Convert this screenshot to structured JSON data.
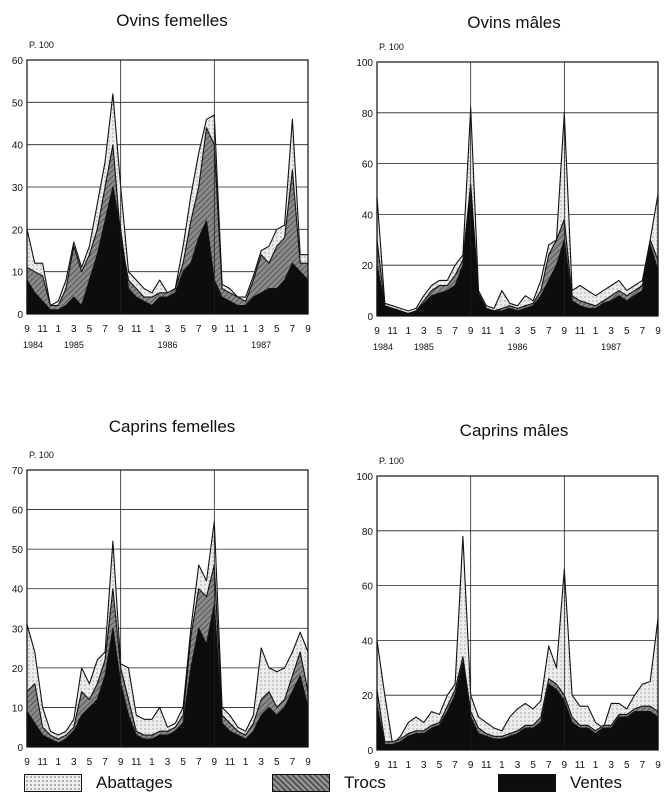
{
  "legend": {
    "abattages": {
      "label": "Abattages",
      "color": "#e4e4e4"
    },
    "trocs": {
      "label": "Trocs",
      "color": "#7a7a7a"
    },
    "ventes": {
      "label": "Ventes",
      "color": "#0d0d0d"
    }
  },
  "chart_data": [
    {
      "type": "area",
      "title": "Ovins femelles",
      "ylabel": "P. 100",
      "ylim": [
        0,
        60
      ],
      "yticks": [
        0,
        10,
        20,
        30,
        40,
        50,
        60
      ],
      "x_tick_labels": [
        "9",
        "11",
        "1",
        "3",
        "5",
        "7",
        "9",
        "11",
        "1",
        "3",
        "5",
        "7",
        "9",
        "11",
        "1",
        "3",
        "5",
        "7",
        "9"
      ],
      "year_labels": [
        "1984",
        "1985",
        "1986",
        "1987"
      ],
      "year_dividers": [
        "1985-09",
        "1986-09"
      ],
      "grid": true,
      "x": [
        "1984-09",
        "1984-10",
        "1984-11",
        "1984-12",
        "1985-01",
        "1985-02",
        "1985-03",
        "1985-04",
        "1985-05",
        "1985-06",
        "1985-07",
        "1985-08",
        "1985-09",
        "1985-10",
        "1985-11",
        "1985-12",
        "1986-01",
        "1986-02",
        "1986-03",
        "1986-04",
        "1986-05",
        "1986-06",
        "1986-07",
        "1986-08",
        "1986-09",
        "1986-10",
        "1986-11",
        "1986-12",
        "1987-01",
        "1987-02",
        "1987-03",
        "1987-04",
        "1987-05",
        "1987-06",
        "1987-07",
        "1987-08",
        "1987-09"
      ],
      "series": [
        {
          "name": "Ventes",
          "values": [
            8,
            5,
            3,
            1,
            1,
            2,
            4,
            2,
            8,
            14,
            22,
            30,
            20,
            6,
            4,
            3,
            2,
            4,
            4,
            5,
            10,
            12,
            18,
            22,
            8,
            4,
            3,
            2,
            2,
            4,
            5,
            6,
            6,
            8,
            12,
            10,
            8
          ]
        },
        {
          "name": "Trocs",
          "values": [
            11,
            10,
            9,
            2,
            2,
            6,
            16,
            10,
            14,
            20,
            30,
            40,
            18,
            8,
            6,
            4,
            4,
            5,
            5,
            6,
            12,
            22,
            30,
            44,
            40,
            6,
            5,
            4,
            3,
            8,
            14,
            12,
            16,
            18,
            34,
            12,
            12
          ]
        },
        {
          "name": "Abattages",
          "values": [
            20,
            12,
            12,
            2,
            3,
            8,
            17,
            11,
            16,
            26,
            36,
            52,
            30,
            10,
            8,
            6,
            5,
            8,
            5,
            6,
            16,
            28,
            38,
            46,
            47,
            7,
            6,
            4,
            4,
            9,
            15,
            16,
            20,
            21,
            46,
            14,
            14
          ]
        }
      ]
    },
    {
      "type": "area",
      "title": "Ovins mâles",
      "ylabel": "P. 100",
      "ylim": [
        0,
        100
      ],
      "yticks": [
        0,
        20,
        40,
        60,
        80,
        100
      ],
      "x_tick_labels": [
        "9",
        "11",
        "1",
        "3",
        "5",
        "7",
        "9",
        "11",
        "1",
        "3",
        "5",
        "7",
        "9",
        "11",
        "1",
        "3",
        "5",
        "7",
        "9"
      ],
      "year_labels": [
        "1984",
        "1985",
        "1986",
        "1987"
      ],
      "year_dividers": [
        "1985-09",
        "1986-09"
      ],
      "grid": true,
      "x": [
        "1984-09",
        "1984-10",
        "1984-11",
        "1984-12",
        "1985-01",
        "1985-02",
        "1985-03",
        "1985-04",
        "1985-05",
        "1985-06",
        "1985-07",
        "1985-08",
        "1985-09",
        "1985-10",
        "1985-11",
        "1985-12",
        "1986-01",
        "1986-02",
        "1986-03",
        "1986-04",
        "1986-05",
        "1986-06",
        "1986-07",
        "1986-08",
        "1986-09",
        "1986-10",
        "1986-11",
        "1986-12",
        "1987-01",
        "1987-02",
        "1987-03",
        "1987-04",
        "1987-05",
        "1987-06",
        "1987-07",
        "1987-08",
        "1987-09"
      ],
      "series": [
        {
          "name": "Ventes",
          "values": [
            20,
            4,
            3,
            2,
            1,
            2,
            5,
            8,
            9,
            10,
            12,
            20,
            50,
            8,
            3,
            2,
            2,
            3,
            2,
            3,
            4,
            8,
            14,
            20,
            30,
            6,
            4,
            3,
            3,
            5,
            6,
            8,
            6,
            8,
            10,
            28,
            18
          ]
        },
        {
          "name": "Trocs",
          "values": [
            30,
            4,
            3,
            2,
            1,
            2,
            6,
            10,
            12,
            12,
            16,
            22,
            52,
            9,
            3,
            2,
            3,
            4,
            3,
            4,
            5,
            10,
            24,
            30,
            38,
            8,
            6,
            5,
            4,
            6,
            8,
            10,
            8,
            10,
            12,
            30,
            22
          ]
        },
        {
          "name": "Abattages",
          "values": [
            47,
            5,
            4,
            3,
            2,
            3,
            8,
            12,
            14,
            14,
            20,
            24,
            82,
            10,
            4,
            3,
            10,
            5,
            4,
            8,
            6,
            14,
            28,
            30,
            80,
            10,
            12,
            10,
            8,
            10,
            12,
            14,
            10,
            12,
            14,
            30,
            48
          ]
        }
      ]
    },
    {
      "type": "area",
      "title": "Caprins femelles",
      "ylabel": "P. 100",
      "ylim": [
        0,
        70
      ],
      "yticks": [
        0,
        10,
        20,
        30,
        40,
        50,
        60,
        70
      ],
      "x_tick_labels": [
        "9",
        "11",
        "1",
        "3",
        "5",
        "7",
        "9",
        "11",
        "1",
        "3",
        "5",
        "7",
        "9",
        "11",
        "1",
        "3",
        "5",
        "7",
        "9"
      ],
      "year_labels": [
        "1984",
        "1985",
        "1986",
        "1987"
      ],
      "year_dividers": [
        "1985-09",
        "1986-09"
      ],
      "grid": true,
      "x": [
        "1984-09",
        "1984-10",
        "1984-11",
        "1984-12",
        "1985-01",
        "1985-02",
        "1985-03",
        "1985-04",
        "1985-05",
        "1985-06",
        "1985-07",
        "1985-08",
        "1985-09",
        "1985-10",
        "1985-11",
        "1985-12",
        "1986-01",
        "1986-02",
        "1986-03",
        "1986-04",
        "1986-05",
        "1986-06",
        "1986-07",
        "1986-08",
        "1986-09",
        "1986-10",
        "1986-11",
        "1986-12",
        "1987-01",
        "1987-02",
        "1987-03",
        "1987-04",
        "1987-05",
        "1987-06",
        "1987-07",
        "1987-08",
        "1987-09"
      ],
      "series": [
        {
          "name": "Ventes",
          "values": [
            9,
            6,
            3,
            2,
            1,
            2,
            4,
            8,
            10,
            12,
            18,
            30,
            16,
            8,
            3,
            2,
            2,
            3,
            3,
            4,
            6,
            20,
            30,
            26,
            36,
            6,
            4,
            3,
            2,
            4,
            8,
            10,
            8,
            10,
            14,
            18,
            10
          ]
        },
        {
          "name": "Trocs",
          "values": [
            14,
            16,
            5,
            3,
            2,
            3,
            5,
            14,
            12,
            16,
            22,
            40,
            20,
            12,
            4,
            3,
            3,
            4,
            4,
            5,
            8,
            28,
            40,
            38,
            46,
            8,
            6,
            4,
            3,
            6,
            12,
            14,
            10,
            12,
            18,
            24,
            14
          ]
        },
        {
          "name": "Abattages",
          "values": [
            31,
            24,
            10,
            4,
            3,
            4,
            7,
            20,
            16,
            22,
            24,
            52,
            21,
            20,
            8,
            7,
            7,
            10,
            5,
            6,
            10,
            30,
            46,
            42,
            57,
            10,
            8,
            5,
            4,
            8,
            25,
            20,
            19,
            20,
            24,
            29,
            24
          ]
        }
      ]
    },
    {
      "type": "area",
      "title": "Caprins mâles",
      "ylabel": "P. 100",
      "ylim": [
        0,
        100
      ],
      "yticks": [
        0,
        20,
        40,
        60,
        80,
        100
      ],
      "x_tick_labels": [
        "9",
        "11",
        "1",
        "3",
        "5",
        "7",
        "9",
        "11",
        "1",
        "3",
        "5",
        "7",
        "9",
        "11",
        "1",
        "3",
        "5",
        "7",
        "9"
      ],
      "year_labels": [
        "1984",
        "1985",
        "1986",
        "1987"
      ],
      "year_dividers": [
        "1985-09",
        "1986-09"
      ],
      "grid": true,
      "x": [
        "1984-09",
        "1984-10",
        "1984-11",
        "1984-12",
        "1985-01",
        "1985-02",
        "1985-03",
        "1985-04",
        "1985-05",
        "1985-06",
        "1985-07",
        "1985-08",
        "1985-09",
        "1985-10",
        "1985-11",
        "1985-12",
        "1986-01",
        "1986-02",
        "1986-03",
        "1986-04",
        "1986-05",
        "1986-06",
        "1986-07",
        "1986-08",
        "1986-09",
        "1986-10",
        "1986-11",
        "1986-12",
        "1987-01",
        "1987-02",
        "1987-03",
        "1987-04",
        "1987-05",
        "1987-06",
        "1987-07",
        "1987-08",
        "1987-09"
      ],
      "series": [
        {
          "name": "Ventes",
          "values": [
            16,
            2,
            2,
            3,
            5,
            6,
            6,
            8,
            9,
            14,
            20,
            32,
            12,
            6,
            5,
            4,
            4,
            5,
            6,
            8,
            8,
            10,
            24,
            22,
            18,
            10,
            8,
            8,
            6,
            8,
            8,
            12,
            12,
            14,
            14,
            14,
            12
          ]
        },
        {
          "name": "Trocs",
          "values": [
            22,
            3,
            3,
            4,
            6,
            7,
            7,
            9,
            10,
            16,
            22,
            34,
            14,
            8,
            6,
            5,
            5,
            6,
            7,
            9,
            9,
            12,
            26,
            24,
            20,
            12,
            9,
            9,
            7,
            9,
            9,
            13,
            13,
            15,
            16,
            16,
            14
          ]
        },
        {
          "name": "Abattages",
          "values": [
            40,
            20,
            2,
            5,
            10,
            12,
            10,
            14,
            13,
            20,
            24,
            78,
            20,
            12,
            10,
            8,
            7,
            12,
            15,
            17,
            15,
            18,
            38,
            30,
            66,
            20,
            16,
            16,
            10,
            8,
            17,
            17,
            15,
            20,
            24,
            25,
            48
          ]
        }
      ]
    }
  ]
}
